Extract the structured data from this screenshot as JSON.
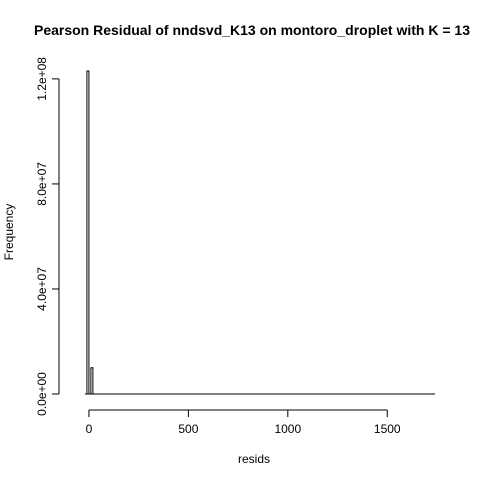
{
  "chart_data": {
    "type": "bar",
    "title": "Pearson Residual of nndsvd_K13 on montoro_droplet with K = 13",
    "xlabel": "resids",
    "ylabel": "Frequency",
    "xlim": [
      -80,
      1740
    ],
    "ylim": [
      0,
      123000000
    ],
    "x_ticks": [
      0,
      500,
      1000,
      1500
    ],
    "x_tick_labels": [
      "0",
      "500",
      "1000",
      "1500"
    ],
    "y_ticks": [
      0,
      40000000,
      80000000,
      120000000
    ],
    "y_tick_labels": [
      "0.0e+00",
      "4.0e+07",
      "8.0e+07",
      "1.2e+08"
    ],
    "bin_width": 10,
    "bins": [
      {
        "start": -20,
        "end": -10,
        "value": 0
      },
      {
        "start": -10,
        "end": 0,
        "value": 123000000
      },
      {
        "start": 0,
        "end": 10,
        "value": 0
      },
      {
        "start": 10,
        "end": 20,
        "value": 10000000
      }
    ],
    "baseline_range": [
      -20,
      1740
    ],
    "bar_fill": "#ffffff",
    "bar_stroke": "#000000",
    "grid": false,
    "legend": "none"
  }
}
